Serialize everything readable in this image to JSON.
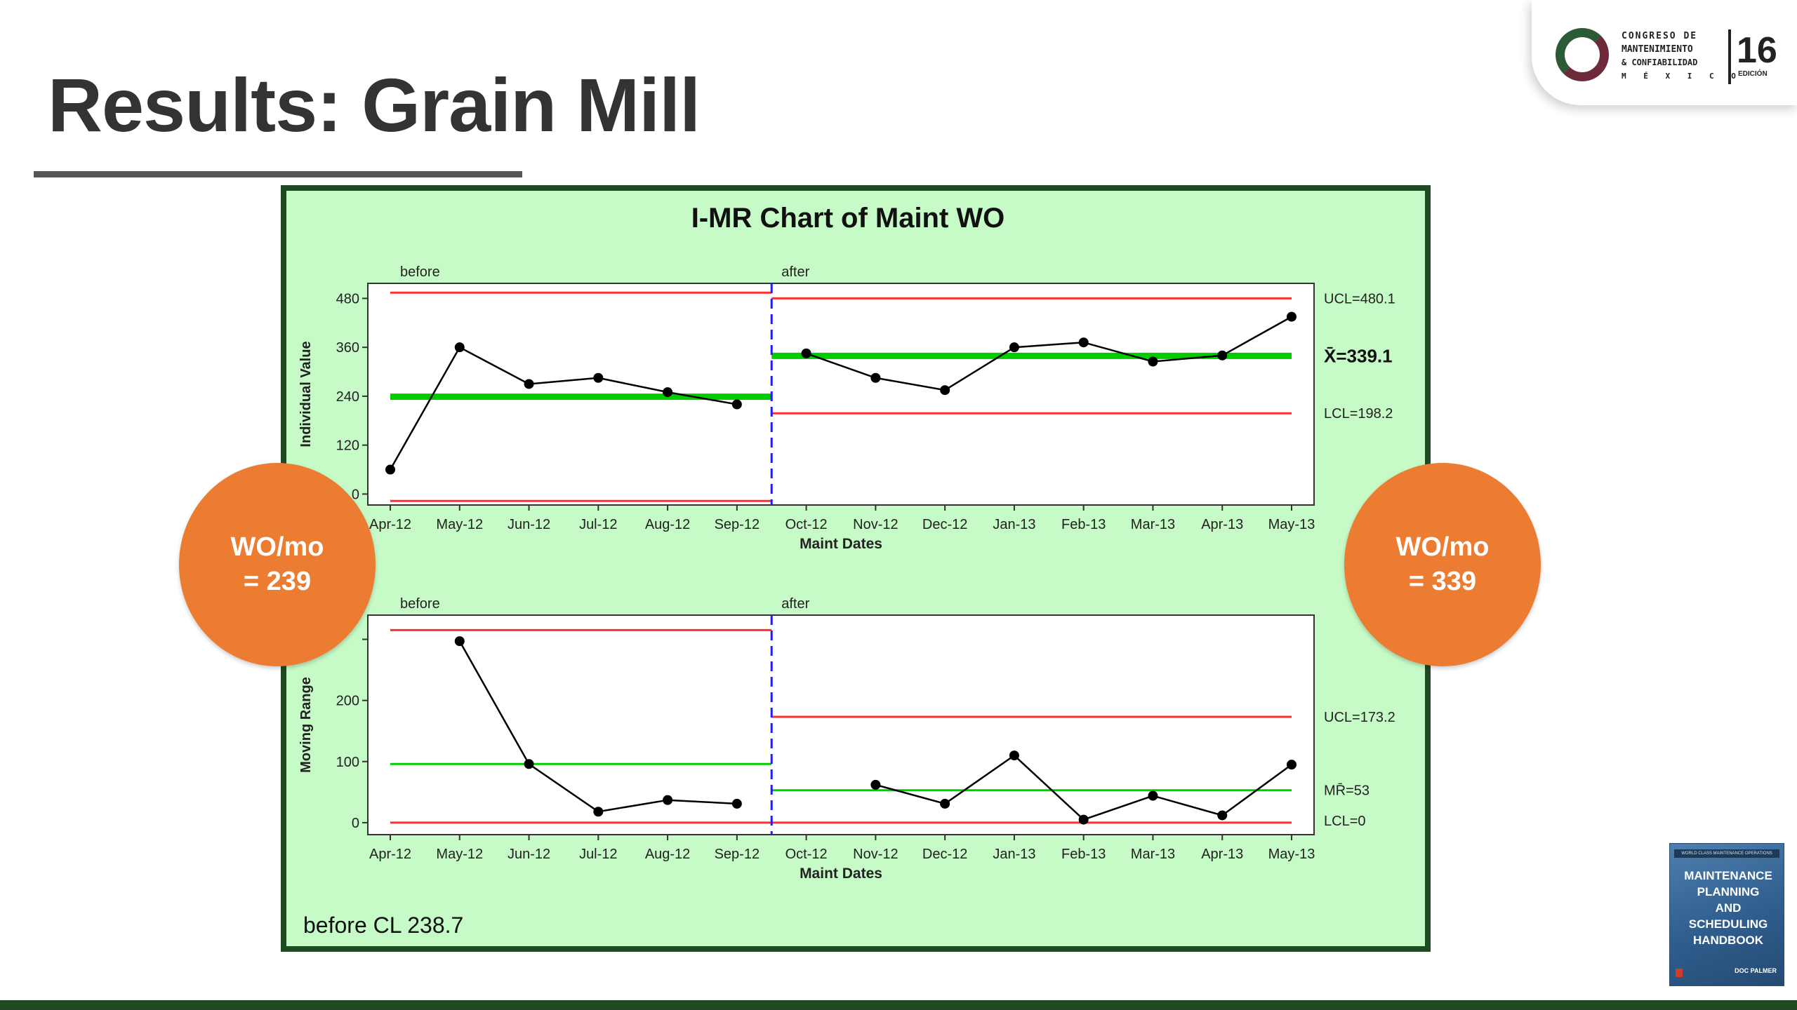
{
  "slide": {
    "title": "Results: Grain Mill"
  },
  "logo": {
    "line1": "CONGRESO DE",
    "line2": "MANTENIMIENTO",
    "line3": "& CONFIABILIDAD",
    "line4": "M É X I C O",
    "number": "16",
    "edition": "EDICIÓN",
    "colors": {
      "green": "#2c5a36",
      "maroon": "#6d2a3a"
    }
  },
  "callouts": {
    "left": {
      "line1": "WO/mo",
      "line2": "= 239"
    },
    "right": {
      "line1": "WO/mo",
      "line2": "= 339"
    }
  },
  "book": {
    "band": "WORLD CLASS MAINTENANCE OPERATIONS",
    "line1": "MAINTENANCE",
    "line2": "PLANNING",
    "line3": "AND SCHEDULING",
    "line4": "HANDBOOK",
    "author": "DOC PALMER"
  },
  "chart_data": {
    "type": "line",
    "title": "I-MR Chart of Maint WO",
    "footnote": "before CL 238.7",
    "panel_color": "#c6fac6",
    "panel_border": "#1e4a22",
    "colors": {
      "data": "#000000",
      "center": "#00cc00",
      "limit": "#ff3030",
      "divider": "#2020ee"
    },
    "categories": [
      "Apr-12",
      "May-12",
      "Jun-12",
      "Jul-12",
      "Aug-12",
      "Sep-12",
      "Oct-12",
      "Nov-12",
      "Dec-12",
      "Jan-13",
      "Feb-13",
      "Mar-13",
      "Apr-13",
      "May-13"
    ],
    "stages": [
      {
        "label": "before",
        "start": 0,
        "end": 5
      },
      {
        "label": "after",
        "start": 6,
        "end": 13
      }
    ],
    "charts": [
      {
        "id": "individual",
        "ylabel": "Individual Value",
        "xlabel": "Maint Dates",
        "ylim": [
          -20,
          510
        ],
        "yticks": [
          0,
          120,
          240,
          360,
          480
        ],
        "ytick_labels": [
          "0",
          "120",
          "240",
          "360",
          "480"
        ],
        "values": [
          60,
          360,
          270,
          285,
          250,
          220,
          345,
          285,
          255,
          360,
          372,
          325,
          340,
          435
        ],
        "stage_limits": [
          {
            "center": 238.7,
            "ucl": 494,
            "lcl": -17
          },
          {
            "center": 339.1,
            "ucl": 480.1,
            "lcl": 198.2
          }
        ],
        "right_labels": {
          "ucl": "UCL=480.1",
          "center": "X̄=339.1",
          "lcl": "LCL=198.2"
        }
      },
      {
        "id": "moving-range",
        "ylabel": "Moving Range",
        "xlabel": "Maint Dates",
        "ylim": [
          -15,
          335
        ],
        "yticks": [
          0,
          100,
          200,
          300
        ],
        "ytick_labels": [
          "0",
          "100",
          "200",
          ""
        ],
        "values": [
          null,
          297,
          96,
          18,
          37,
          31,
          null,
          62,
          31,
          110,
          5,
          44,
          12,
          95
        ],
        "stage_limits": [
          {
            "center": 96,
            "ucl": 315,
            "lcl": 0
          },
          {
            "center": 53,
            "ucl": 173.2,
            "lcl": 0
          }
        ],
        "right_labels": {
          "ucl": "UCL=173.2",
          "center": "MR̄=53",
          "lcl": "LCL=0"
        }
      }
    ]
  }
}
